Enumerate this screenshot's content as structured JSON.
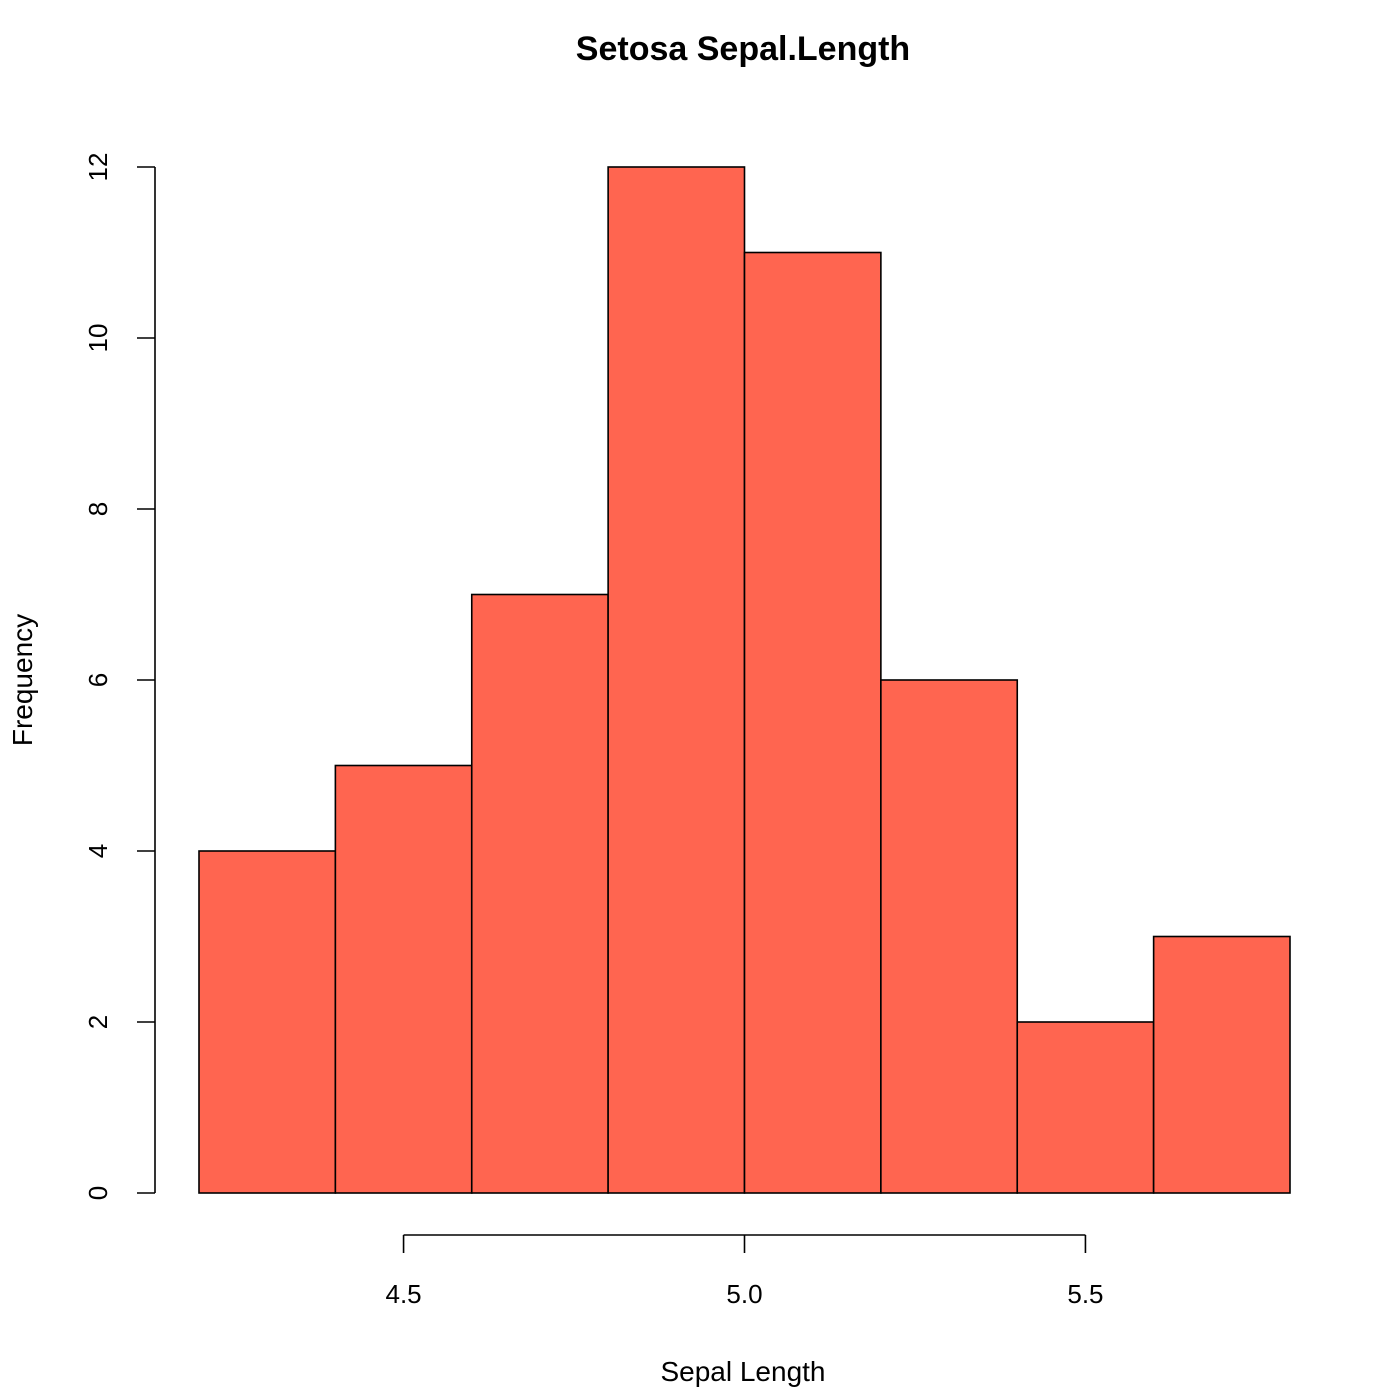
{
  "chart_data": {
    "type": "bar",
    "title": "Setosa Sepal.Length",
    "xlabel": "Sepal Length",
    "ylabel": "Frequency",
    "bins": [
      {
        "start": 4.2,
        "end": 4.4,
        "count": 4
      },
      {
        "start": 4.4,
        "end": 4.6,
        "count": 5
      },
      {
        "start": 4.6,
        "end": 4.8,
        "count": 7
      },
      {
        "start": 4.8,
        "end": 5.0,
        "count": 12
      },
      {
        "start": 5.0,
        "end": 5.2,
        "count": 11
      },
      {
        "start": 5.2,
        "end": 5.4,
        "count": 6
      },
      {
        "start": 5.4,
        "end": 5.6,
        "count": 2
      },
      {
        "start": 5.6,
        "end": 5.8,
        "count": 3
      }
    ],
    "xlim": [
      4.2,
      5.8
    ],
    "ylim": [
      0,
      12
    ],
    "x_ticks": [
      {
        "value": 4.5,
        "label": "4.5"
      },
      {
        "value": 5.0,
        "label": "5.0"
      },
      {
        "value": 5.5,
        "label": "5.5"
      }
    ],
    "y_ticks": [
      {
        "value": 0,
        "label": "0"
      },
      {
        "value": 2,
        "label": "2"
      },
      {
        "value": 4,
        "label": "4"
      },
      {
        "value": 6,
        "label": "6"
      },
      {
        "value": 8,
        "label": "8"
      },
      {
        "value": 10,
        "label": "10"
      },
      {
        "value": 12,
        "label": "12"
      }
    ],
    "grid": false,
    "legend": "none",
    "bar_color": "#FF6550",
    "edge_color": "#000000"
  }
}
